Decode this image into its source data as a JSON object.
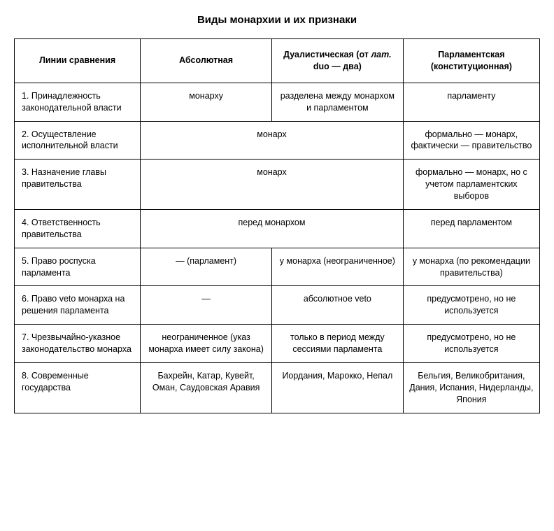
{
  "title": "Виды монархии и их признаки",
  "columns": [
    "Линии сравнения",
    "Абсолютная",
    "Дуалистическая (от лат. duo — два)",
    "Парламентская (конституционная)"
  ],
  "col2_parts": {
    "prefix": "Дуалистическая (от ",
    "ital": "лат.",
    "suffix": " duo — два)"
  },
  "rows": [
    {
      "criteria": "1. Принадлежность законодательной власти",
      "absolute": "монарху",
      "dual": "разделена между монархом и парламентом",
      "parliament": "парламенту",
      "merge12": false
    },
    {
      "criteria": "2. Осуществление исполнительной власти",
      "merged": "монарх",
      "parliament": "формально — монарх, фактически — правительство",
      "merge12": true
    },
    {
      "criteria": "3. Назначение главы правительства",
      "merged": "монарх",
      "parliament": "формально — монарх, но с учетом парламентских выборов",
      "merge12": true
    },
    {
      "criteria": "4. Ответственность правительства",
      "merged": "перед монархом",
      "parliament": "перед парламентом",
      "merge12": true
    },
    {
      "criteria": "5. Право роспуска парламента",
      "absolute": "— (парламент)",
      "dual": "у монарха (неограниченное)",
      "parliament": "у монарха (по рекомендации правительства)",
      "merge12": false
    },
    {
      "criteria": "6. Право veto монарха на решения парламента",
      "absolute": "—",
      "dual": "абсолютное veto",
      "parliament": "предусмотрено, но не используется",
      "merge12": false
    },
    {
      "criteria": "7. Чрезвычайно-указное законодательство монарха",
      "absolute": "неограниченное (указ монарха имеет силу закона)",
      "dual": "только в период между сессиями парламента",
      "parliament": "предусмотрено, но не используется",
      "merge12": false
    },
    {
      "criteria": "8. Современные государства",
      "absolute": "Бахрейн, Катар, Кувейт, Оман, Саудовская Аравия",
      "dual": "Иордания, Марокко, Непал",
      "parliament": "Бельгия, Великобритания, Дания, Испания, Нидерланды, Япония",
      "merge12": false
    }
  ],
  "style": {
    "font_family": "Arial",
    "title_fontsize": 15,
    "cell_fontsize": 12.5,
    "border_color": "#000000",
    "background_color": "#ffffff",
    "text_color": "#000000",
    "column_widths_pct": [
      24,
      25,
      25,
      26
    ]
  }
}
